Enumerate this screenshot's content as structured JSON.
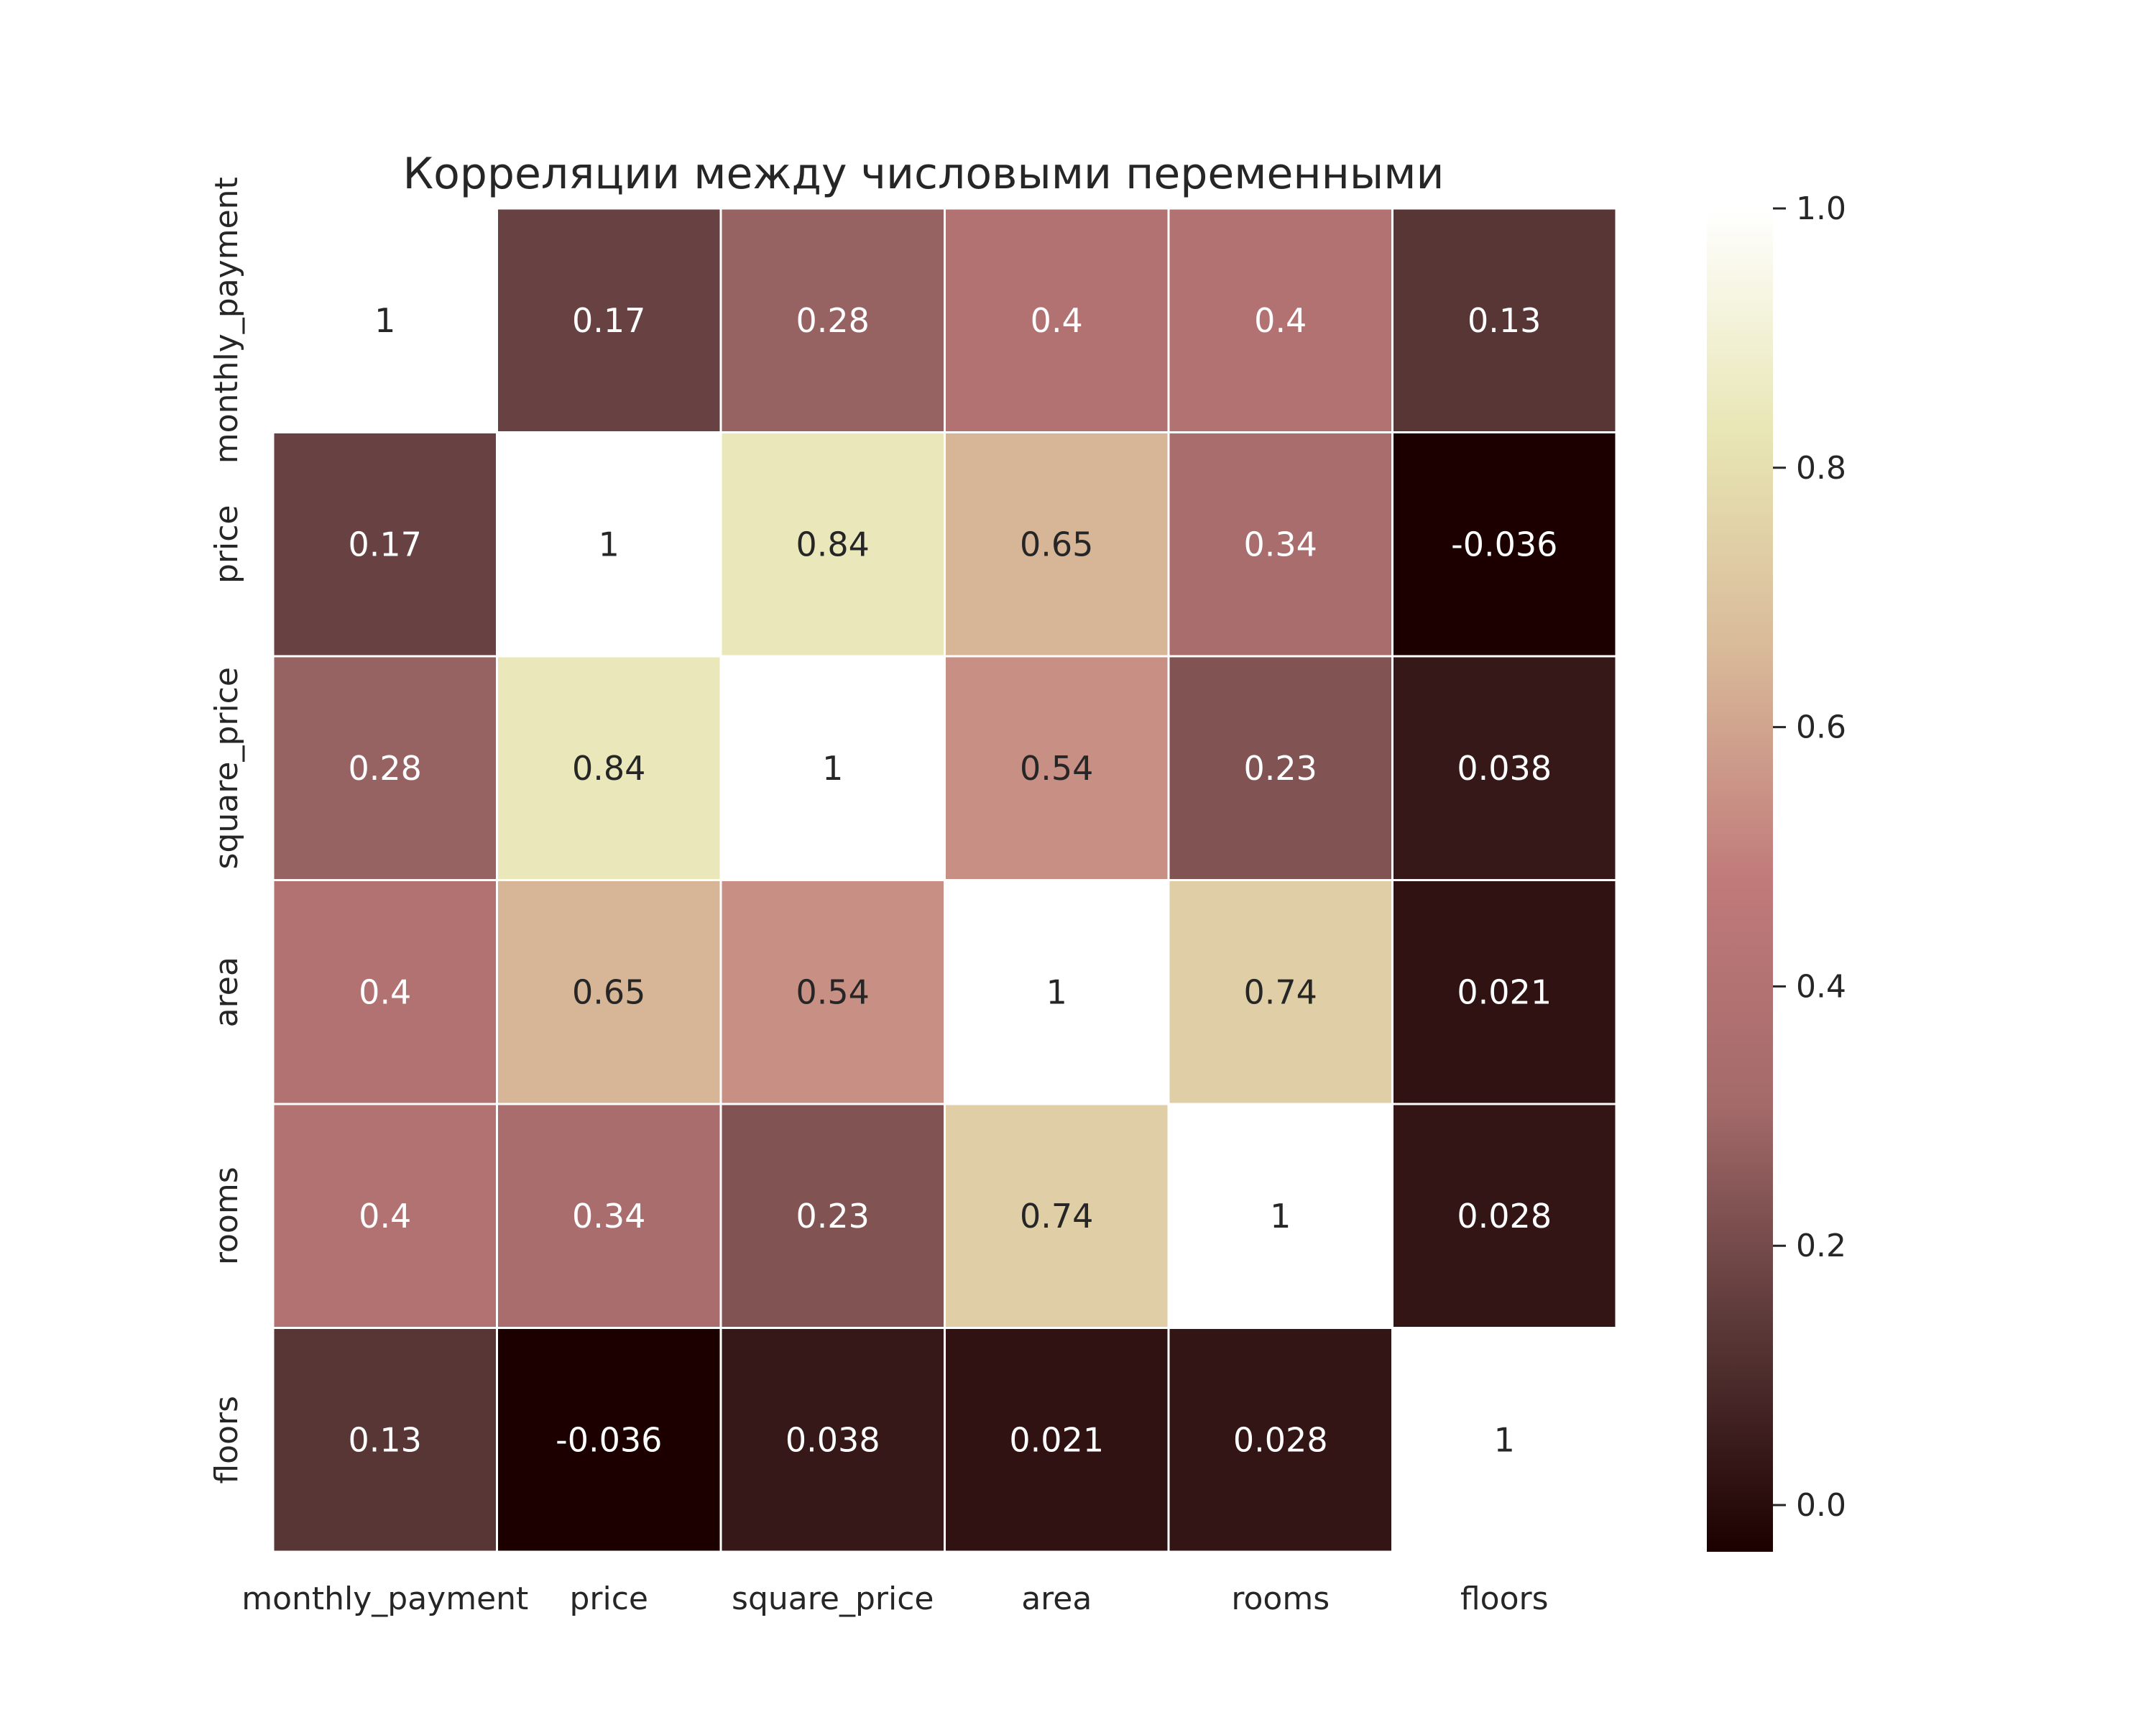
{
  "chart_data": {
    "type": "heatmap",
    "title": "Корреляции между числовыми переменными",
    "xlabel": "",
    "ylabel": "",
    "categories": [
      "monthly_payment",
      "price",
      "square_price",
      "area",
      "rooms",
      "floors"
    ],
    "matrix": [
      [
        "1",
        "0.17",
        "0.28",
        "0.4",
        "0.4",
        "0.13"
      ],
      [
        "0.17",
        "1",
        "0.84",
        "0.65",
        "0.34",
        "-0.036"
      ],
      [
        "0.28",
        "0.84",
        "1",
        "0.54",
        "0.23",
        "0.038"
      ],
      [
        "0.4",
        "0.65",
        "0.54",
        "1",
        "0.74",
        "0.021"
      ],
      [
        "0.4",
        "0.34",
        "0.23",
        "0.74",
        "1",
        "0.028"
      ],
      [
        "0.13",
        "-0.036",
        "0.038",
        "0.021",
        "0.028",
        "1"
      ]
    ],
    "colorbar": {
      "range": [
        -0.036,
        1.0
      ],
      "ticks": [
        "0.0",
        "0.2",
        "0.4",
        "0.6",
        "0.8",
        "1.0"
      ]
    },
    "colormap": [
      "#1c0000",
      "#5a3838",
      "#a46a6a",
      "#c07a7a",
      "#d8b898",
      "#e8e6b4",
      "#ffffff"
    ],
    "grid": false
  }
}
